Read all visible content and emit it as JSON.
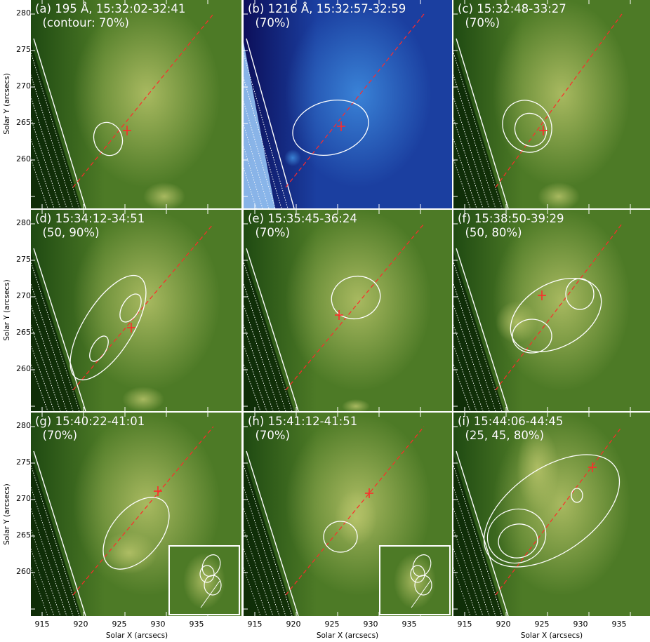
{
  "panels": [
    {
      "id": "a",
      "title_line1": "(a) 195 Å, 15:32:02-32:41",
      "title_line2": "(contour: 70%)",
      "palette": "green"
    },
    {
      "id": "b",
      "title_line1": "(b) 1216 Å, 15:32:57-32:59",
      "title_line2": "(70%)",
      "palette": "blue"
    },
    {
      "id": "c",
      "title_line1": "(c) 15:32:48-33:27",
      "title_line2": "(70%)",
      "palette": "green"
    },
    {
      "id": "d",
      "title_line1": "(d) 15:34:12-34:51",
      "title_line2": "(50, 90%)",
      "palette": "green"
    },
    {
      "id": "e",
      "title_line1": "(e) 15:35:45-36:24",
      "title_line2": "(70%)",
      "palette": "green"
    },
    {
      "id": "f",
      "title_line1": "(f) 15:38:50-39:29",
      "title_line2": "(50, 80%)",
      "palette": "green"
    },
    {
      "id": "g",
      "title_line1": "(g) 15:40:22-41:01",
      "title_line2": "(70%)",
      "palette": "green",
      "inset": true
    },
    {
      "id": "h",
      "title_line1": "(h) 15:41:12-41:51",
      "title_line2": "(70%)",
      "palette": "green",
      "inset": true
    },
    {
      "id": "i",
      "title_line1": "(i) 15:44:06-44:45",
      "title_line2": "(25, 45, 80%)",
      "palette": "green"
    }
  ],
  "axes": {
    "ylabel": "Solar Y (arcsecs)",
    "xlabel": "Solar X (arcsecs)",
    "yticks": [
      "280",
      "275",
      "270",
      "265",
      "260"
    ],
    "xticks": [
      "915",
      "920",
      "925",
      "930",
      "935"
    ]
  },
  "colors": {
    "green_dark": "#1f4a12",
    "green_mid": "#4d7a26",
    "green_light": "#b8c46a",
    "blue_dark": "#0c0f5a",
    "blue_light": "#3f8ee0",
    "marker": "#ff2a2a",
    "contour": "#ffffff"
  }
}
